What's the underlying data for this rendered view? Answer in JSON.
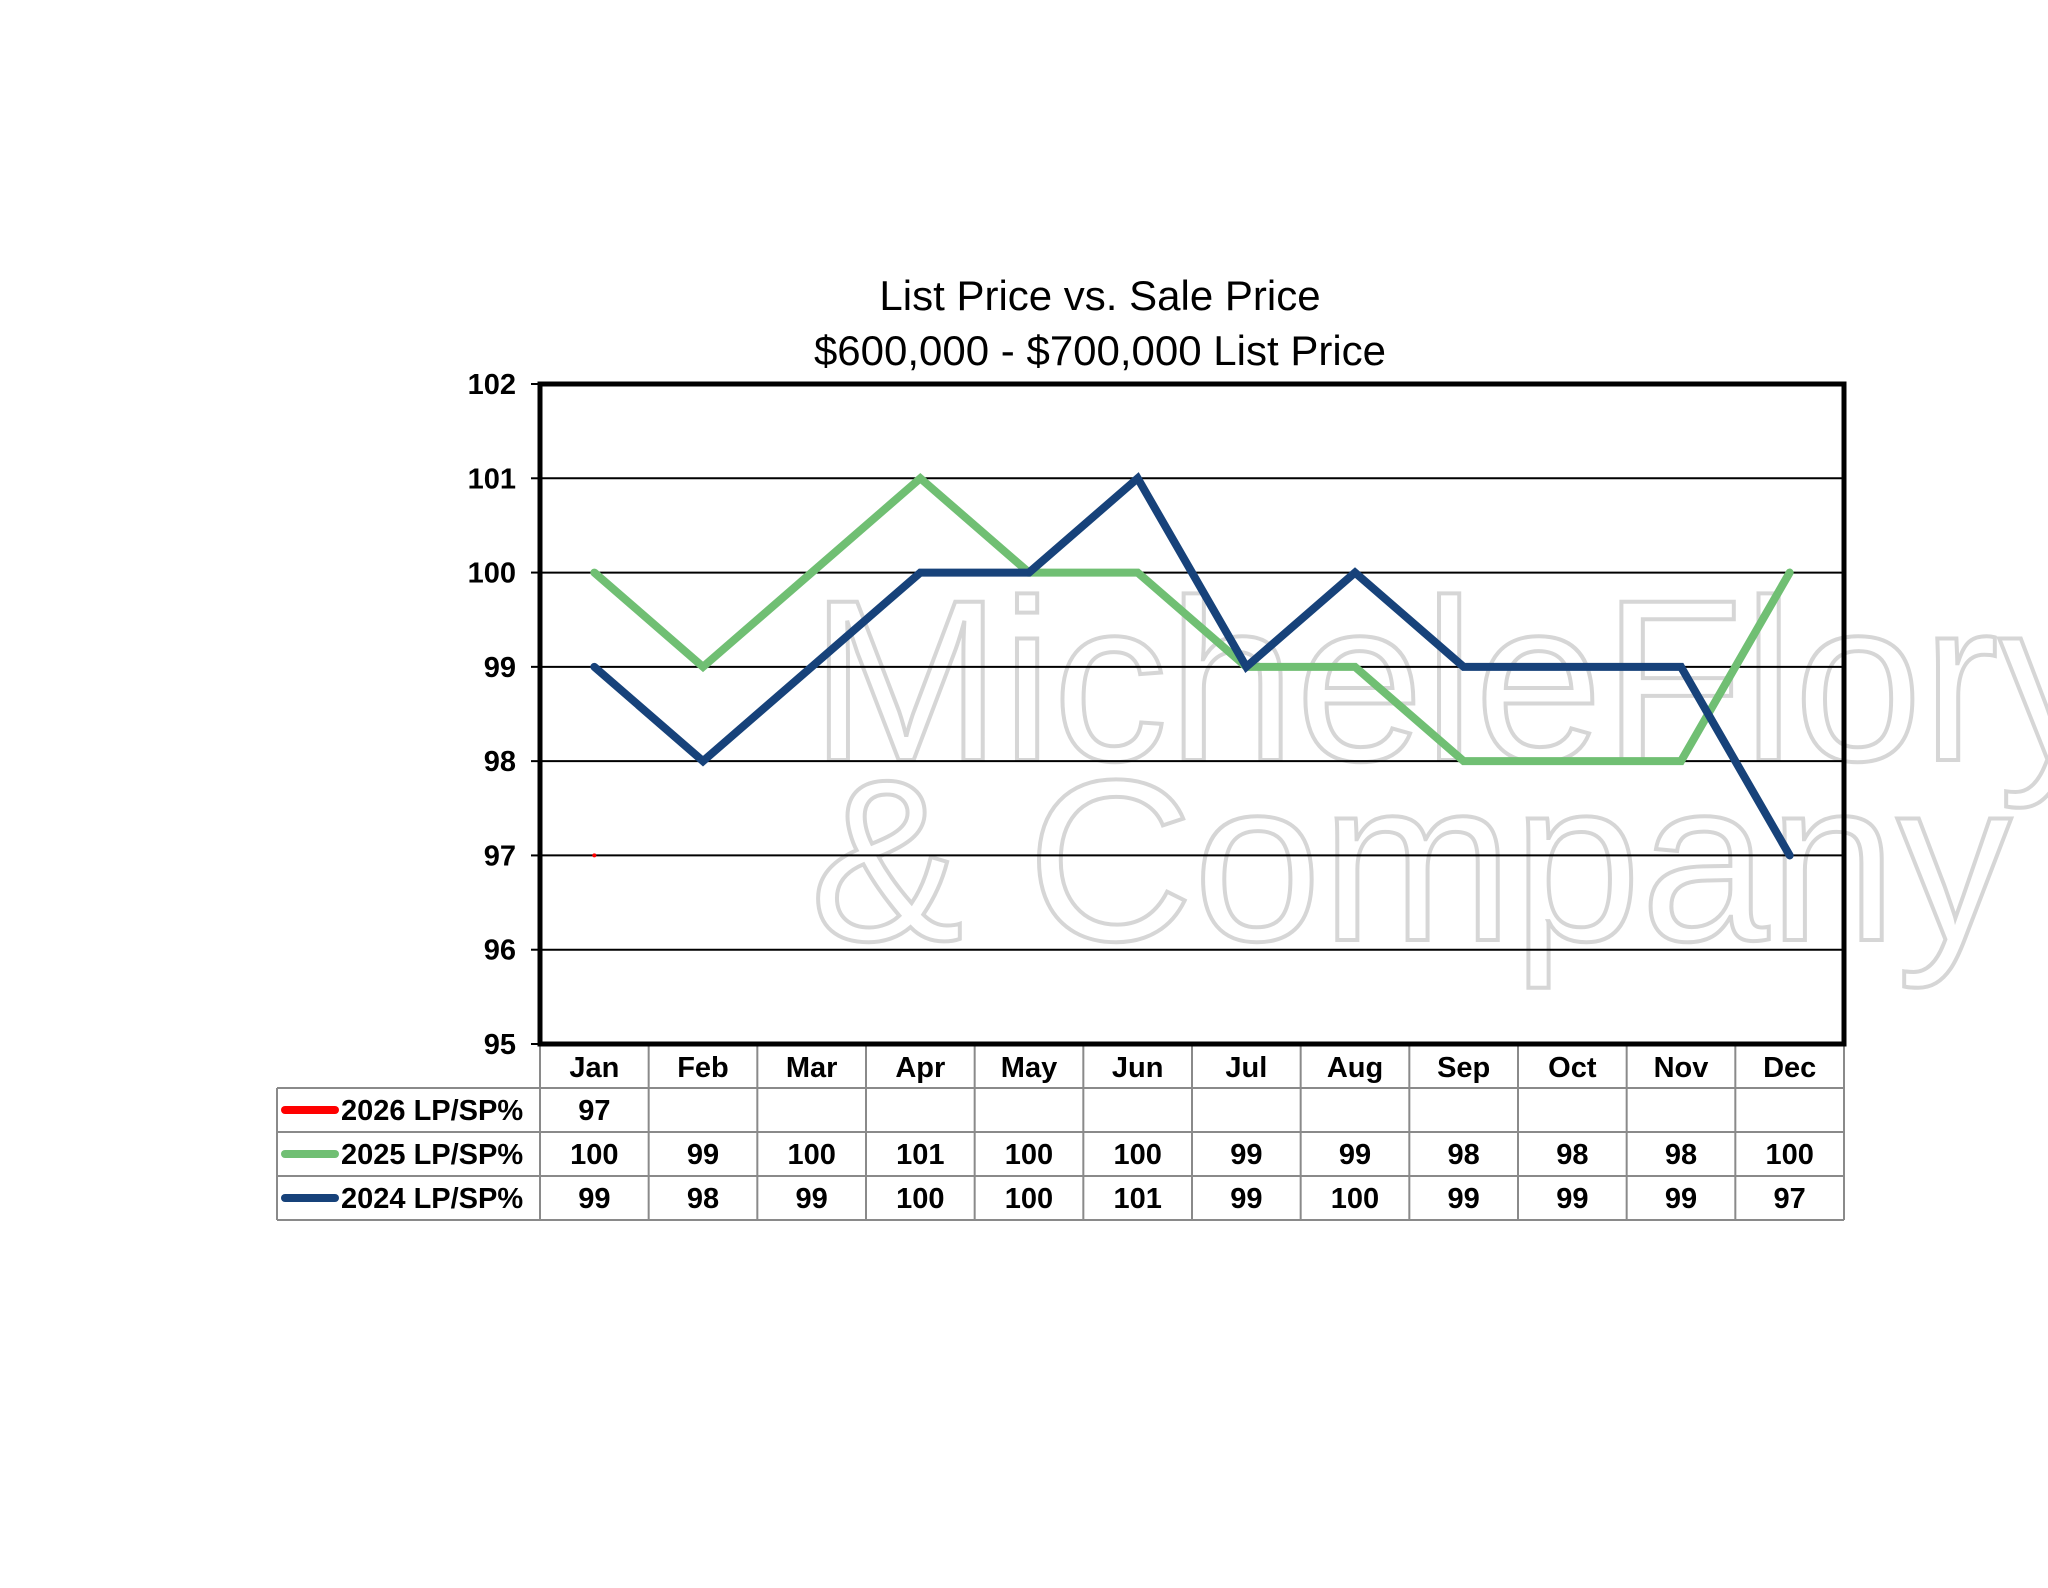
{
  "chart_data": {
    "type": "line",
    "title": "List Price vs. Sale Price",
    "subtitle": "$600,000 - $700,000 List Price",
    "xlabel": "",
    "ylabel": "",
    "ylim": [
      95,
      102
    ],
    "yticks": [
      95,
      96,
      97,
      98,
      99,
      100,
      101,
      102
    ],
    "grid": true,
    "legend_placement": "bottom-left data table",
    "categories": [
      "Jan",
      "Feb",
      "Mar",
      "Apr",
      "May",
      "Jun",
      "Jul",
      "Aug",
      "Sep",
      "Oct",
      "Nov",
      "Dec"
    ],
    "series": [
      {
        "name": "2026 LP/SP%",
        "color": "#ff0000",
        "values": [
          97,
          null,
          null,
          null,
          null,
          null,
          null,
          null,
          null,
          null,
          null,
          null
        ]
      },
      {
        "name": "2025 LP/SP%",
        "color": "#70bf73",
        "values": [
          100,
          99,
          100,
          101,
          100,
          100,
          99,
          99,
          98,
          98,
          98,
          100
        ]
      },
      {
        "name": "2024 LP/SP%",
        "color": "#17427a",
        "values": [
          99,
          98,
          99,
          100,
          100,
          101,
          99,
          100,
          99,
          99,
          99,
          97
        ]
      }
    ]
  },
  "watermark": {
    "line1": "MicheleFlory",
    "line2": "& Company"
  }
}
